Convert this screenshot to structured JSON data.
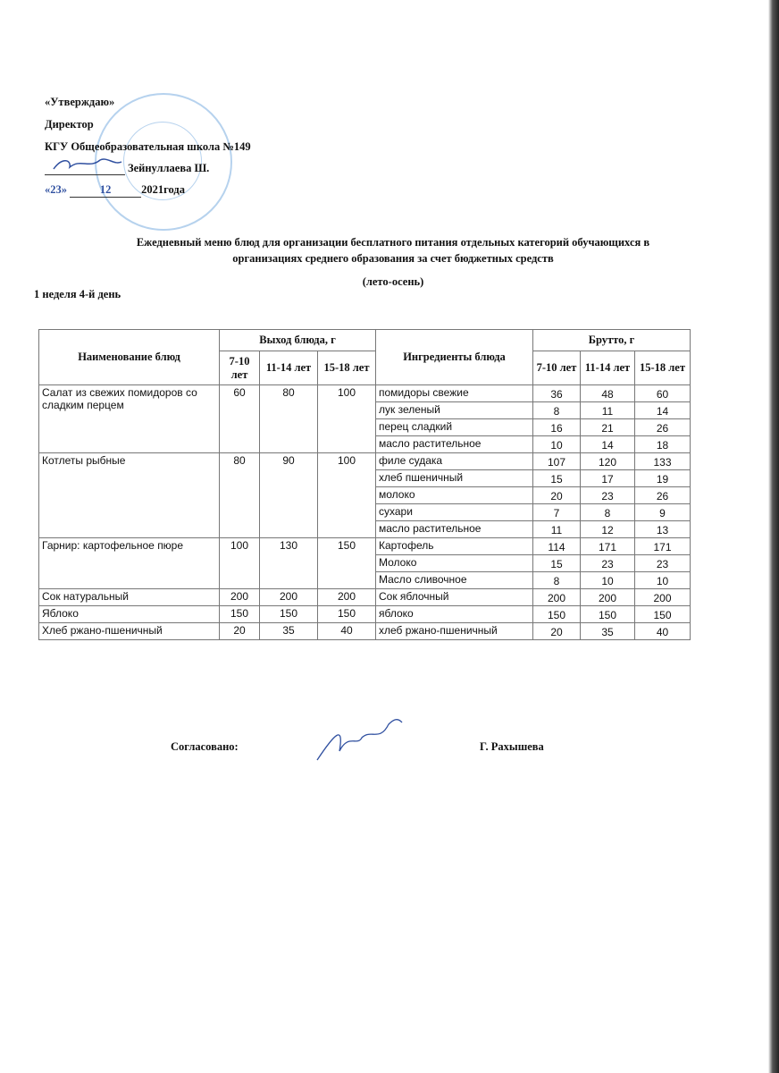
{
  "approval": {
    "line1": "«Утверждаю»",
    "line2": "Директор",
    "line3": "КГУ Общеобразовательная школа №149",
    "director": "Зейнуллаева Ш.",
    "date_day": "«23»",
    "date_month": "12",
    "date_year": "2021года"
  },
  "title": {
    "line1": "Ежедневный меню блюд для организации бесплатного питания отдельных категорий обучающихся в",
    "line2": "организациях среднего образования за счет бюджетных средств",
    "season": "(лето-осень)"
  },
  "week_day": "1 неделя 4-й день",
  "table": {
    "headers": {
      "dish": "Наименование блюд",
      "output": "Выход блюда, г",
      "ingredients": "Ингредиенты блюда",
      "brutto": "Брутто, г",
      "ages": [
        "7-10 лет",
        "11-14 лет",
        "15-18 лет"
      ]
    },
    "dishes": [
      {
        "name": "Салат из свежих помидоров со сладким перцем",
        "output": [
          "60",
          "80",
          "100"
        ],
        "ingredients": [
          {
            "name": "помидоры свежие",
            "brutto": [
              "36",
              "48",
              "60"
            ]
          },
          {
            "name": "лук зеленый",
            "brutto": [
              "8",
              "11",
              "14"
            ]
          },
          {
            "name": "перец сладкий",
            "brutto": [
              "16",
              "21",
              "26"
            ]
          },
          {
            "name": "масло растительное",
            "brutto": [
              "10",
              "14",
              "18"
            ]
          }
        ]
      },
      {
        "name": "Котлеты рыбные",
        "output": [
          "80",
          "90",
          "100"
        ],
        "ingredients": [
          {
            "name": "филе судака",
            "brutto": [
              "107",
              "120",
              "133"
            ]
          },
          {
            "name": "хлеб пшеничный",
            "brutto": [
              "15",
              "17",
              "19"
            ]
          },
          {
            "name": "молоко",
            "brutto": [
              "20",
              "23",
              "26"
            ]
          },
          {
            "name": "сухари",
            "brutto": [
              "7",
              "8",
              "9"
            ]
          },
          {
            "name": "масло растительное",
            "brutto": [
              "11",
              "12",
              "13"
            ]
          }
        ]
      },
      {
        "name": "Гарнир:  картофельное пюре",
        "output": [
          "100",
          "130",
          "150"
        ],
        "ingredients": [
          {
            "name": "Картофель",
            "brutto": [
              "114",
              "171",
              "171"
            ]
          },
          {
            "name": "Молоко",
            "brutto": [
              "15",
              "23",
              "23"
            ]
          },
          {
            "name": "Масло сливочное",
            "brutto": [
              "8",
              "10",
              "10"
            ]
          }
        ]
      },
      {
        "name": "Сок натуральный",
        "output": [
          "200",
          "200",
          "200"
        ],
        "ingredients": [
          {
            "name": "Сок яблочный",
            "brutto": [
              "200",
              "200",
              "200"
            ]
          }
        ]
      },
      {
        "name": "Яблоко",
        "output": [
          "150",
          "150",
          "150"
        ],
        "ingredients": [
          {
            "name": "яблоко",
            "brutto": [
              "150",
              "150",
              "150"
            ]
          }
        ]
      },
      {
        "name": "Хлеб ржано-пшеничный",
        "output": [
          "20",
          "35",
          "40"
        ],
        "ingredients": [
          {
            "name": "хлеб ржано-пшеничный",
            "brutto": [
              "20",
              "35",
              "40"
            ]
          }
        ]
      }
    ]
  },
  "footer": {
    "agreed": "Согласовано:",
    "name": "Г. Рахышева"
  }
}
